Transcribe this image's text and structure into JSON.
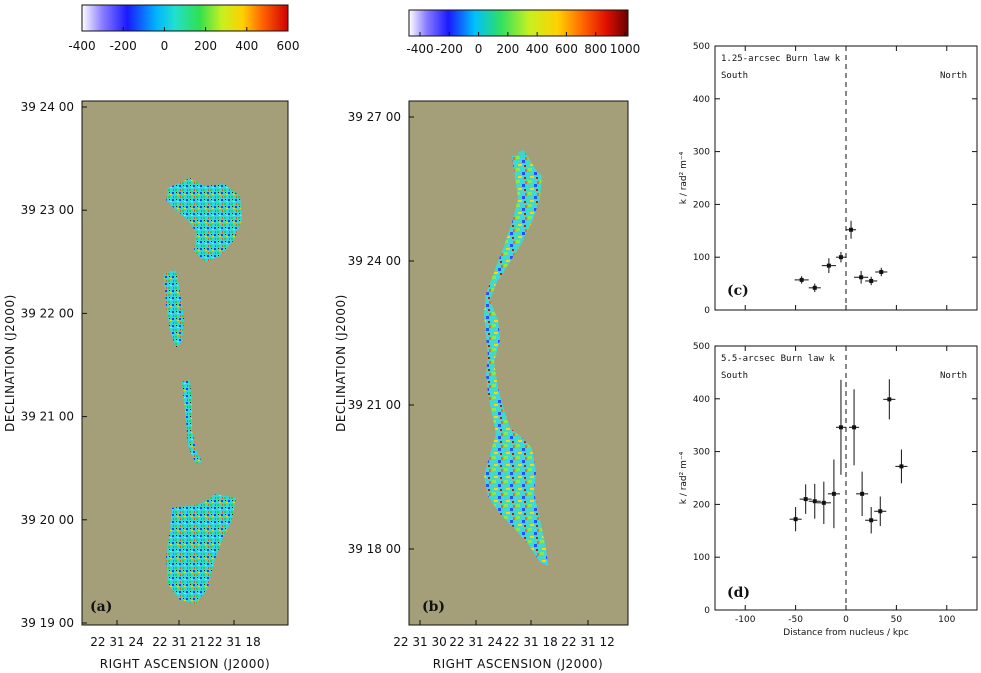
{
  "colors": {
    "map_background": "#a49f78",
    "panel_frame": "#111111"
  },
  "panel_a": {
    "label": "(a)",
    "colorbar_ticks": [
      "-400",
      "-200",
      "0",
      "200",
      "400",
      "600"
    ],
    "colorbar_range": [
      -400,
      600
    ],
    "dec_ticks": [
      "39 24 00",
      "39 23 00",
      "39 22 00",
      "39 21 00",
      "39 20 00",
      "39 19 00"
    ],
    "ra_ticks": [
      "22 31 24",
      "22 31 21",
      "22 31 18"
    ],
    "xlabel": "RIGHT ASCENSION  (J2000)",
    "ylabel": "DECLINATION  (J2000)"
  },
  "panel_b": {
    "label": "(b)",
    "colorbar_ticks": [
      "-400",
      "-200",
      "0",
      "200",
      "400",
      "600",
      "800",
      "1000"
    ],
    "colorbar_range": [
      -400,
      1000
    ],
    "dec_ticks": [
      "39 27 00",
      "39 24 00",
      "39 21 00",
      "39 18 00"
    ],
    "ra_ticks": [
      "22 31 30",
      "22 31 24",
      "22 31 18",
      "22 31 12"
    ],
    "xlabel": "RIGHT ASCENSION  (J2000)",
    "ylabel": "DECLINATION  (J2000)"
  },
  "chart_data": [
    {
      "type": "scatter",
      "panel_label": "(c)",
      "title": "1.25-arcsec Burn law k",
      "annotations": [
        "South",
        "North"
      ],
      "xlabel": "",
      "ylabel": "k / rad² m⁻⁴",
      "xlim": [
        -130,
        130
      ],
      "ylim": [
        0,
        500
      ],
      "xticks": [
        -100,
        -50,
        0,
        50,
        100
      ],
      "yticks": [
        0,
        100,
        200,
        300,
        400,
        500
      ],
      "vline_x": 0,
      "points": [
        {
          "x": -44,
          "y": 57,
          "xerr": 7,
          "yerr": 7
        },
        {
          "x": -31,
          "y": 42,
          "xerr": 6,
          "yerr": 8
        },
        {
          "x": -17,
          "y": 84,
          "xerr": 7,
          "yerr": 14
        },
        {
          "x": -5,
          "y": 100,
          "xerr": 5,
          "yerr": 10
        },
        {
          "x": 5,
          "y": 152,
          "xerr": 5,
          "yerr": 17
        },
        {
          "x": 15,
          "y": 62,
          "xerr": 7,
          "yerr": 12
        },
        {
          "x": 25,
          "y": 55,
          "xerr": 6,
          "yerr": 8
        },
        {
          "x": 35,
          "y": 72,
          "xerr": 6,
          "yerr": 8
        }
      ]
    },
    {
      "type": "scatter",
      "panel_label": "(d)",
      "title": "5.5-arcsec Burn law k",
      "annotations": [
        "South",
        "North"
      ],
      "xlabel": "Distance from nucleus / kpc",
      "ylabel": "k / rad² m⁻⁴",
      "xlim": [
        -130,
        130
      ],
      "ylim": [
        0,
        500
      ],
      "xticks": [
        -100,
        -50,
        0,
        50,
        100
      ],
      "yticks": [
        0,
        100,
        200,
        300,
        400,
        500
      ],
      "vline_x": 0,
      "points": [
        {
          "x": -50,
          "y": 172,
          "xerr": 6,
          "yerr": 23
        },
        {
          "x": -40,
          "y": 210,
          "xerr": 6,
          "yerr": 28
        },
        {
          "x": -31,
          "y": 206,
          "xerr": 6,
          "yerr": 33
        },
        {
          "x": -22,
          "y": 203,
          "xerr": 7,
          "yerr": 40
        },
        {
          "x": -12,
          "y": 220,
          "xerr": 6,
          "yerr": 65
        },
        {
          "x": -5,
          "y": 346,
          "xerr": 5,
          "yerr": 90
        },
        {
          "x": 8,
          "y": 346,
          "xerr": 5,
          "yerr": 72
        },
        {
          "x": 16,
          "y": 220,
          "xerr": 6,
          "yerr": 42
        },
        {
          "x": 25,
          "y": 170,
          "xerr": 6,
          "yerr": 25
        },
        {
          "x": 34,
          "y": 187,
          "xerr": 6,
          "yerr": 28
        },
        {
          "x": 43,
          "y": 399,
          "xerr": 6,
          "yerr": 38
        },
        {
          "x": 55,
          "y": 272,
          "xerr": 6,
          "yerr": 32
        }
      ]
    }
  ]
}
